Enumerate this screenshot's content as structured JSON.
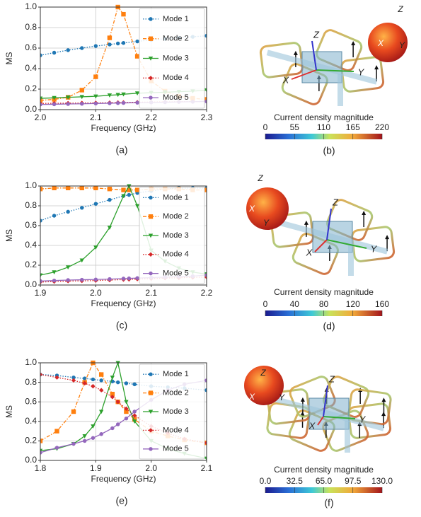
{
  "chart_data": [
    {
      "type": "line",
      "panel_label": "(a)",
      "xlabel": "Frequency (GHz)",
      "ylabel": "MS",
      "x": [
        2.0,
        2.025,
        2.05,
        2.075,
        2.1,
        2.125,
        2.14,
        2.15,
        2.175,
        2.2,
        2.225,
        2.25,
        2.275,
        2.3
      ],
      "xlim": [
        2.0,
        2.3
      ],
      "xticks": [
        {
          "value": 2,
          "label": "2.0"
        },
        2.1,
        2.2,
        2.3
      ],
      "ylim": [
        0,
        1
      ],
      "yticks": [
        {
          "value": 0,
          "label": "0.0"
        },
        0.2,
        0.4,
        0.6,
        0.8,
        {
          "value": 1,
          "label": "1.0"
        }
      ],
      "grid": true,
      "legend": "upper right",
      "series": [
        {
          "name": "Mode 1",
          "color": "#1f77b4",
          "marker": "circle",
          "dash": "dotted",
          "values": [
            0.53,
            0.555,
            0.58,
            0.6,
            0.62,
            0.635,
            0.645,
            0.65,
            0.665,
            0.68,
            0.69,
            0.7,
            0.71,
            0.72
          ]
        },
        {
          "name": "Mode 2",
          "color": "#ff7f0e",
          "marker": "square",
          "dash": "dashdot",
          "values": [
            0.09,
            0.1,
            0.12,
            0.19,
            0.32,
            0.7,
            1.0,
            0.93,
            0.52,
            0.28,
            0.18,
            0.13,
            0.11,
            0.1
          ]
        },
        {
          "name": "Mode 3",
          "color": "#2ca02c",
          "marker": "triangle",
          "dash": "solid",
          "values": [
            0.11,
            0.115,
            0.12,
            0.125,
            0.13,
            0.14,
            0.145,
            0.15,
            0.16,
            0.165,
            0.17,
            0.175,
            0.18,
            0.19
          ]
        },
        {
          "name": "Mode 4",
          "color": "#d62728",
          "marker": "diamond",
          "dash": "dotted",
          "values": [
            0.06,
            0.062,
            0.063,
            0.065,
            0.066,
            0.068,
            0.069,
            0.07,
            0.072,
            0.074,
            0.075,
            0.077,
            0.078,
            0.08
          ]
        },
        {
          "name": "Mode 5",
          "color": "#9467bd",
          "marker": "circle",
          "dash": "solid",
          "values": [
            0.05,
            0.052,
            0.055,
            0.057,
            0.06,
            0.062,
            0.064,
            0.065,
            0.068,
            0.07,
            0.072,
            0.075,
            0.077,
            0.08
          ]
        }
      ]
    },
    {
      "type": "line",
      "panel_label": "(c)",
      "xlabel": "Frequency (GHz)",
      "ylabel": "MS",
      "x": [
        1.9,
        1.925,
        1.95,
        1.975,
        2.0,
        2.025,
        2.05,
        2.06,
        2.075,
        2.1,
        2.125,
        2.15,
        2.175,
        2.2
      ],
      "xlim": [
        1.9,
        2.2
      ],
      "xticks": [
        1.9,
        {
          "value": 2,
          "label": "2.0"
        },
        2.1,
        2.2
      ],
      "ylim": [
        0,
        1
      ],
      "yticks": [
        {
          "value": 0,
          "label": "0.0"
        },
        0.2,
        0.4,
        0.6,
        0.8,
        {
          "value": 1,
          "label": "1.0"
        }
      ],
      "grid": true,
      "legend": "upper right",
      "series": [
        {
          "name": "Mode 1",
          "color": "#1f77b4",
          "marker": "circle",
          "dash": "dotted",
          "values": [
            0.65,
            0.7,
            0.74,
            0.78,
            0.82,
            0.86,
            0.9,
            0.91,
            0.93,
            0.95,
            0.97,
            0.98,
            0.98,
            0.98
          ]
        },
        {
          "name": "Mode 2",
          "color": "#ff7f0e",
          "marker": "square",
          "dash": "dashdot",
          "values": [
            0.97,
            0.98,
            0.98,
            0.98,
            0.98,
            0.97,
            0.96,
            0.96,
            0.96,
            0.97,
            0.97,
            0.97,
            0.96,
            0.96
          ]
        },
        {
          "name": "Mode 3",
          "color": "#2ca02c",
          "marker": "triangle",
          "dash": "solid",
          "values": [
            0.1,
            0.13,
            0.18,
            0.25,
            0.38,
            0.58,
            0.9,
            1.0,
            0.8,
            0.35,
            0.24,
            0.17,
            0.13,
            0.11
          ]
        },
        {
          "name": "Mode 4",
          "color": "#d62728",
          "marker": "diamond",
          "dash": "dotted",
          "values": [
            0.03,
            0.035,
            0.04,
            0.042,
            0.045,
            0.05,
            0.055,
            0.057,
            0.06,
            0.065,
            0.07,
            0.073,
            0.077,
            0.08
          ]
        },
        {
          "name": "Mode 5",
          "color": "#9467bd",
          "marker": "circle",
          "dash": "solid",
          "values": [
            0.04,
            0.045,
            0.05,
            0.053,
            0.056,
            0.06,
            0.065,
            0.067,
            0.07,
            0.075,
            0.08,
            0.085,
            0.09,
            0.1
          ]
        }
      ]
    },
    {
      "type": "line",
      "panel_label": "(e)",
      "xlabel": "Frequency (GHz)",
      "ylabel": "MS",
      "x": [
        1.8,
        1.83,
        1.86,
        1.88,
        1.895,
        1.91,
        1.93,
        1.94,
        1.955,
        1.97,
        2.0,
        2.03,
        2.06,
        2.1
      ],
      "xlim": [
        1.8,
        2.1
      ],
      "xticks": [
        1.8,
        1.9,
        {
          "value": 2,
          "label": "2.0"
        },
        2.1
      ],
      "ylim": [
        0,
        1
      ],
      "yticks": [
        {
          "value": 0,
          "label": "0.0"
        },
        0.2,
        0.4,
        0.6,
        0.8,
        {
          "value": 1,
          "label": "1.0"
        }
      ],
      "grid": true,
      "legend": "upper right",
      "series": [
        {
          "name": "Mode 1",
          "color": "#1f77b4",
          "marker": "circle",
          "dash": "dotted",
          "values": [
            0.88,
            0.87,
            0.85,
            0.84,
            0.83,
            0.82,
            0.81,
            0.8,
            0.79,
            0.78,
            0.76,
            0.75,
            0.74,
            0.72
          ]
        },
        {
          "name": "Mode 2",
          "color": "#ff7f0e",
          "marker": "square",
          "dash": "dashdot",
          "values": [
            0.2,
            0.3,
            0.5,
            0.8,
            1.0,
            0.88,
            0.68,
            0.6,
            0.5,
            0.42,
            0.3,
            0.25,
            0.21,
            0.18
          ]
        },
        {
          "name": "Mode 3",
          "color": "#2ca02c",
          "marker": "triangle",
          "dash": "solid",
          "values": [
            0.1,
            0.12,
            0.17,
            0.25,
            0.35,
            0.5,
            0.85,
            1.0,
            0.6,
            0.4,
            0.2,
            0.12,
            0.07,
            0.02
          ]
        },
        {
          "name": "Mode 4",
          "color": "#d62728",
          "marker": "diamond",
          "dash": "dotted",
          "values": [
            0.88,
            0.85,
            0.82,
            0.79,
            0.76,
            0.72,
            0.65,
            0.6,
            0.53,
            0.46,
            0.35,
            0.28,
            0.22,
            0.18
          ]
        },
        {
          "name": "Mode 5",
          "color": "#9467bd",
          "marker": "circle",
          "dash": "solid",
          "values": [
            0.08,
            0.13,
            0.17,
            0.2,
            0.23,
            0.27,
            0.33,
            0.37,
            0.43,
            0.5,
            0.62,
            0.72,
            0.78,
            0.82
          ]
        }
      ]
    }
  ],
  "figures": [
    {
      "panel_label": "(b)",
      "axes": [
        "X",
        "Y",
        "Z"
      ],
      "sphere_axes": [
        "X",
        "Y",
        "Z"
      ],
      "colorbar": {
        "title": "Current density magnitude",
        "lim": [
          0,
          220
        ],
        "ticks": [
          0,
          55,
          110,
          165,
          220
        ]
      }
    },
    {
      "panel_label": "(d)",
      "axes": [
        "X",
        "Y",
        "Z"
      ],
      "sphere_axes": [
        "X",
        "Y",
        "Z"
      ],
      "colorbar": {
        "title": "Current density magnitude",
        "lim": [
          0,
          160
        ],
        "ticks": [
          0,
          40,
          80,
          120,
          160
        ]
      }
    },
    {
      "panel_label": "(f)",
      "axes": [
        "X",
        "Y",
        "Z"
      ],
      "sphere_axes": [
        "X",
        "Y",
        "Z"
      ],
      "colorbar": {
        "title": "Current density magnitude",
        "lim": [
          0,
          130
        ],
        "ticks": [
          {
            "value": 0,
            "label": "0.0"
          },
          32.5,
          {
            "value": 65,
            "label": "65.0"
          },
          97.5,
          {
            "value": 130,
            "label": "130.0"
          }
        ]
      }
    }
  ]
}
